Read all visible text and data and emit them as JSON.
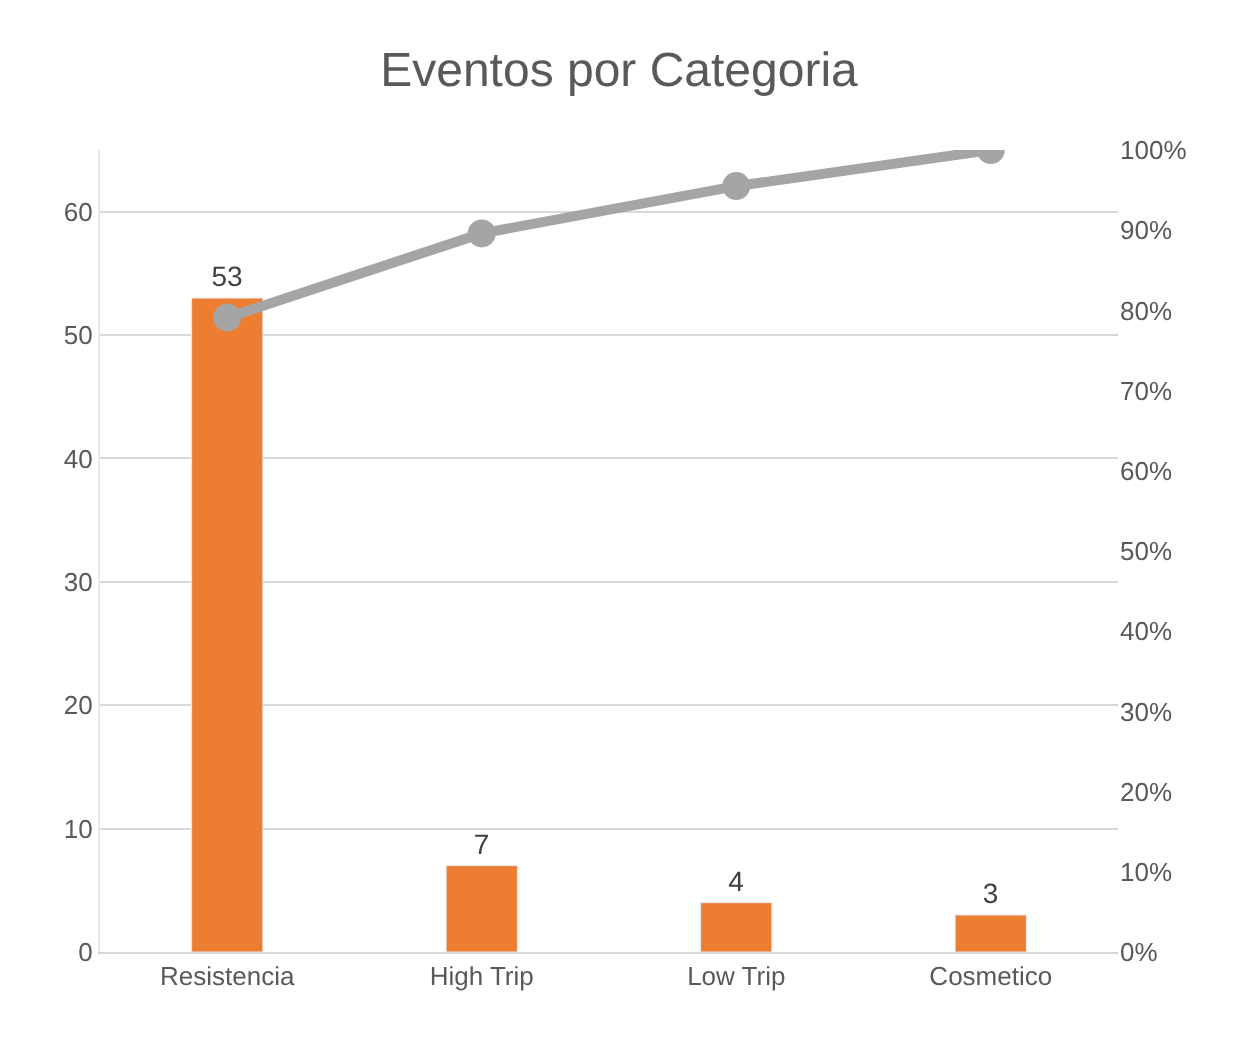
{
  "chart_data": {
    "type": "bar",
    "title": "Eventos por Categoria",
    "categories": [
      "Resistencia",
      "High Trip",
      "Low Trip",
      "Cosmetico"
    ],
    "series": [
      {
        "color": "#ed7d31",
        "values": [
          53,
          7,
          4,
          3
        ],
        "value_labels": [
          "53",
          "7",
          "4",
          "3"
        ]
      },
      {
        "type": "line",
        "axis": "y2",
        "color": "#a5a5a5",
        "values": [
          79.1,
          89.6,
          95.5,
          100
        ],
        "marker": "circle"
      }
    ],
    "ylim": [
      0,
      65
    ],
    "yticks": [
      0,
      10,
      20,
      30,
      40,
      50,
      60
    ],
    "y2lim": [
      0,
      100
    ],
    "y2ticks": [
      {
        "value": 0,
        "label": "0%"
      },
      {
        "value": 10,
        "label": "10%"
      },
      {
        "value": 20,
        "label": "20%"
      },
      {
        "value": 30,
        "label": "30%"
      },
      {
        "value": 40,
        "label": "40%"
      },
      {
        "value": 50,
        "label": "50%"
      },
      {
        "value": 60,
        "label": "60%"
      },
      {
        "value": 70,
        "label": "70%"
      },
      {
        "value": 80,
        "label": "80%"
      },
      {
        "value": 90,
        "label": "90%"
      },
      {
        "value": 100,
        "label": "100%"
      }
    ],
    "grid": "y",
    "legend": false
  }
}
